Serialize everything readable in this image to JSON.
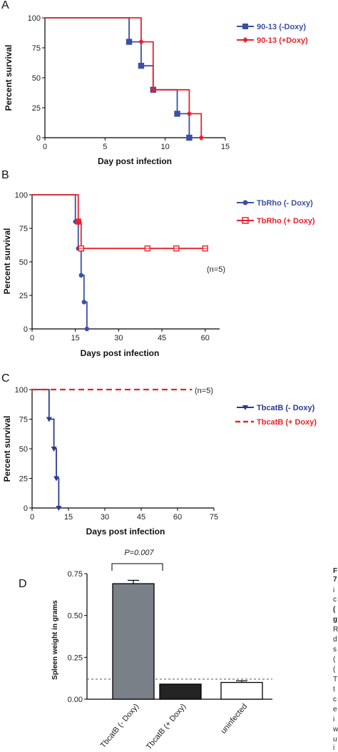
{
  "chart_data": [
    {
      "panel": "A",
      "type": "line",
      "xlabel": "Day post infection",
      "ylabel": "Percent survival",
      "xlim": [
        0,
        15
      ],
      "ylim": [
        0,
        100
      ],
      "xticks": [
        "0",
        "5",
        "10",
        "15"
      ],
      "yticks": [
        "0",
        "25",
        "50",
        "75",
        "100"
      ],
      "legend_position": "top-right",
      "series": [
        {
          "name": "90-13 (-Doxy)",
          "color": "#3b4fa3",
          "marker": "square",
          "x": [
            0,
            7,
            8,
            9,
            11,
            12
          ],
          "y": [
            100,
            80,
            60,
            40,
            20,
            0
          ],
          "censored": []
        },
        {
          "name": "90-13 (+Doxy)",
          "color": "#e8232a",
          "marker": "diamond",
          "x": [
            0,
            8,
            9,
            12,
            13
          ],
          "y": [
            100,
            80,
            40,
            20,
            0
          ],
          "censored": []
        }
      ]
    },
    {
      "panel": "B",
      "type": "line",
      "xlabel": "Days post infection",
      "ylabel": "Percent survival",
      "xlim": [
        0,
        65
      ],
      "ylim": [
        0,
        100
      ],
      "xticks": [
        "0",
        "15",
        "30",
        "45",
        "60"
      ],
      "yticks": [
        "0",
        "25",
        "50",
        "75",
        "100"
      ],
      "legend_position": "top-right",
      "annotation": "(n=5)",
      "series": [
        {
          "name": "TbRho (- Doxy)",
          "color": "#3b4fa3",
          "marker": "circle",
          "x": [
            0,
            15,
            16,
            17,
            18,
            19
          ],
          "y": [
            100,
            80,
            60,
            40,
            20,
            0
          ],
          "censored": []
        },
        {
          "name": "TbRho (+ Doxy)",
          "color": "#e8232a",
          "marker": "square",
          "x": [
            0,
            16,
            17
          ],
          "y": [
            100,
            80,
            60
          ],
          "end": 60,
          "censored": [
            [
              17,
              60
            ],
            [
              40,
              60
            ],
            [
              50,
              60
            ],
            [
              60,
              60
            ]
          ]
        }
      ]
    },
    {
      "panel": "C",
      "type": "line",
      "xlabel": "Days post infection",
      "ylabel": "Percent survival",
      "xlim": [
        0,
        75
      ],
      "ylim": [
        0,
        100
      ],
      "xticks": [
        "0",
        "15",
        "30",
        "45",
        "60",
        "75"
      ],
      "yticks": [
        "0",
        "25",
        "50",
        "75",
        "100"
      ],
      "legend_position": "top-right",
      "annotation": "(n=5)",
      "series": [
        {
          "name": "TbcatB (- Doxy)",
          "color": "#2b3a8f",
          "marker": "triangle-down",
          "x": [
            0,
            7,
            9,
            10,
            11
          ],
          "y": [
            100,
            75,
            50,
            25,
            0
          ],
          "censored": []
        },
        {
          "name": "TbcatB (+ Doxy)",
          "color": "#e8232a",
          "marker": "none",
          "dashed": true,
          "x": [
            0
          ],
          "y": [
            100
          ],
          "end": 66,
          "censored": []
        }
      ]
    },
    {
      "panel": "D",
      "type": "bar",
      "ylabel": "Spleen weight in grams",
      "categories": [
        "TbcatB (- Doxy)",
        "TbcatB (+ Doxy)",
        "uninfected"
      ],
      "values": [
        0.69,
        0.09,
        0.1
      ],
      "errors": [
        0.02,
        0,
        0.01
      ],
      "colors": [
        "#7a8087",
        "#242424",
        "#ffffff"
      ],
      "ylim": [
        0,
        0.75
      ],
      "yticks": [
        "0.00",
        "0.25",
        "0.50",
        "0.75"
      ],
      "threshold_line": 0.12,
      "significance": "P=0.007"
    }
  ],
  "caption_fragments": [
    "F",
    "7",
    "i",
    "c",
    "(",
    "g",
    "R",
    "d",
    "s",
    "(",
    "(",
    "T",
    "t",
    "c",
    "e",
    "i",
    "w",
    "u",
    "i"
  ]
}
